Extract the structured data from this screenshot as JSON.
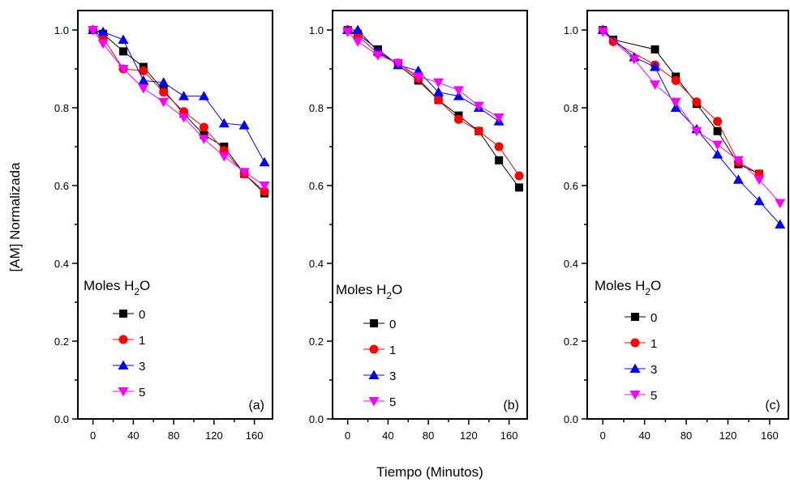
{
  "figure": {
    "ylabel": "[AM] Normalizada",
    "xlabel": "Tiempo (Minutos)"
  },
  "chart_data": [
    {
      "type": "line",
      "panel_label": "(a)",
      "legend": {
        "title": "Moles H",
        "title_sub": "2",
        "title_end": "O",
        "placement": "lower-left"
      },
      "xlim": [
        -15,
        178
      ],
      "ylim": [
        0,
        1.05
      ],
      "xticks": [
        0,
        40,
        80,
        120,
        160
      ],
      "xtick_labels": [
        "0",
        "40",
        "80",
        "120",
        "160"
      ],
      "yticks": [
        0,
        0.2,
        0.4,
        0.6,
        0.8,
        1.0
      ],
      "ytick_labels": [
        "0.0",
        "0.2",
        "0.4",
        "0.6",
        "0.8",
        "1.0"
      ],
      "series": [
        {
          "name": "0",
          "color": "#000000",
          "marker": "square",
          "x": [
            0,
            10,
            30,
            50,
            70,
            90,
            110,
            130,
            150,
            170
          ],
          "y": [
            1.0,
            0.99,
            0.945,
            0.905,
            0.845,
            0.785,
            0.73,
            0.7,
            0.63,
            0.58
          ]
        },
        {
          "name": "1",
          "color": "#ff0000",
          "marker": "circle",
          "x": [
            0,
            10,
            30,
            50,
            70,
            90,
            110,
            130,
            150,
            170
          ],
          "y": [
            1.0,
            0.98,
            0.9,
            0.895,
            0.84,
            0.79,
            0.75,
            0.69,
            0.63,
            0.585
          ]
        },
        {
          "name": "3",
          "color": "#0000ff",
          "marker": "triangle-up",
          "x": [
            0,
            10,
            30,
            50,
            70,
            90,
            110,
            130,
            150,
            170
          ],
          "y": [
            1.0,
            0.995,
            0.975,
            0.87,
            0.865,
            0.83,
            0.83,
            0.76,
            0.755,
            0.66
          ]
        },
        {
          "name": "5",
          "color": "#ff00ff",
          "marker": "triangle-down",
          "x": [
            0,
            10,
            30,
            50,
            70,
            90,
            110,
            130,
            150,
            170
          ],
          "y": [
            1.0,
            0.965,
            0.9,
            0.85,
            0.815,
            0.775,
            0.72,
            0.675,
            0.635,
            0.6
          ]
        }
      ]
    },
    {
      "type": "line",
      "panel_label": "(b)",
      "legend": {
        "title": "Moles H",
        "title_sub": "2",
        "title_end": "O",
        "placement": "lower-left"
      },
      "xlim": [
        -15,
        178
      ],
      "ylim": [
        0,
        1.05
      ],
      "xticks": [
        0,
        40,
        80,
        120,
        160
      ],
      "xtick_labels": [
        "0",
        "40",
        "80",
        "120",
        "160"
      ],
      "yticks": [
        0,
        0.2,
        0.4,
        0.6,
        0.8,
        1.0
      ],
      "ytick_labels": [
        "0.0",
        "0.2",
        "0.4",
        "0.6",
        "0.8",
        "1.0"
      ],
      "series": [
        {
          "name": "0",
          "color": "#000000",
          "marker": "square",
          "x": [
            0,
            10,
            30,
            50,
            70,
            90,
            110,
            130,
            150,
            170
          ],
          "y": [
            1.0,
            0.99,
            0.95,
            0.91,
            0.87,
            0.82,
            0.78,
            0.74,
            0.665,
            0.595
          ]
        },
        {
          "name": "1",
          "color": "#ff0000",
          "marker": "circle",
          "x": [
            0,
            10,
            30,
            50,
            70,
            90,
            110,
            130,
            150,
            170
          ],
          "y": [
            1.0,
            0.985,
            0.94,
            0.915,
            0.875,
            0.82,
            0.77,
            0.74,
            0.7,
            0.625
          ]
        },
        {
          "name": "3",
          "color": "#0000ff",
          "marker": "triangle-up",
          "x": [
            0,
            10,
            30,
            50,
            70,
            90,
            110,
            130,
            150
          ],
          "y": [
            1.0,
            1.0,
            0.945,
            0.91,
            0.895,
            0.84,
            0.83,
            0.8,
            0.765
          ]
        },
        {
          "name": "5",
          "color": "#ff00ff",
          "marker": "triangle-down",
          "x": [
            0,
            10,
            30,
            50,
            70,
            90,
            110,
            130,
            150
          ],
          "y": [
            0.995,
            0.97,
            0.935,
            0.915,
            0.88,
            0.865,
            0.845,
            0.805,
            0.775
          ]
        }
      ]
    },
    {
      "type": "line",
      "panel_label": "(c)",
      "legend": {
        "title": "Moles H",
        "title_sub": "2",
        "title_end": "O",
        "placement": "lower-left"
      },
      "xlim": [
        -15,
        178
      ],
      "ylim": [
        0,
        1.05
      ],
      "xticks": [
        0,
        40,
        80,
        120,
        160
      ],
      "xtick_labels": [
        "0",
        "40",
        "80",
        "120",
        "160"
      ],
      "yticks": [
        0,
        0.2,
        0.4,
        0.6,
        0.8,
        1.0
      ],
      "ytick_labels": [
        "0.0",
        "0.2",
        "0.4",
        "0.6",
        "0.8",
        "1.0"
      ],
      "series": [
        {
          "name": "0",
          "color": "#000000",
          "marker": "square",
          "x": [
            0,
            10,
            50,
            70,
            90,
            110,
            130,
            150
          ],
          "y": [
            1.0,
            0.975,
            0.95,
            0.88,
            0.81,
            0.74,
            0.655,
            0.63
          ]
        },
        {
          "name": "1",
          "color": "#ff0000",
          "marker": "circle",
          "x": [
            0,
            10,
            50,
            70,
            90,
            110,
            130,
            150
          ],
          "y": [
            1.0,
            0.97,
            0.91,
            0.87,
            0.815,
            0.765,
            0.66,
            0.63
          ]
        },
        {
          "name": "3",
          "color": "#0000ff",
          "marker": "triangle-up",
          "x": [
            0,
            30,
            50,
            70,
            90,
            110,
            130,
            150,
            170
          ],
          "y": [
            1.0,
            0.93,
            0.905,
            0.8,
            0.745,
            0.68,
            0.615,
            0.56,
            0.5
          ]
        },
        {
          "name": "5",
          "color": "#ff00ff",
          "marker": "triangle-down",
          "x": [
            0,
            30,
            50,
            70,
            90,
            110,
            130,
            150,
            170
          ],
          "y": [
            0.995,
            0.925,
            0.86,
            0.815,
            0.74,
            0.705,
            0.665,
            0.615,
            0.555
          ]
        }
      ]
    }
  ]
}
